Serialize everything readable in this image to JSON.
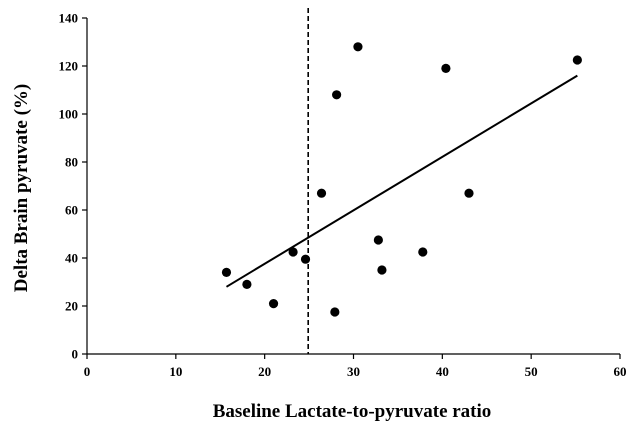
{
  "chart_data": {
    "type": "scatter",
    "title": "",
    "xlabel": "Baseline Lactate-to-pyruvate ratio",
    "ylabel": "Delta  Brain pyruvate (%)",
    "xlim": [
      0,
      60
    ],
    "ylim": [
      0,
      140
    ],
    "xticks": [
      0,
      10,
      20,
      30,
      40,
      50,
      60
    ],
    "yticks": [
      0,
      20,
      40,
      60,
      80,
      100,
      120,
      140
    ],
    "grid": false,
    "legend": "none",
    "series": [
      {
        "marker_color": "#000000",
        "points": [
          {
            "x": 15.7,
            "y": 34
          },
          {
            "x": 18.0,
            "y": 29
          },
          {
            "x": 21.0,
            "y": 21
          },
          {
            "x": 23.2,
            "y": 42.5
          },
          {
            "x": 24.6,
            "y": 39.5
          },
          {
            "x": 26.4,
            "y": 67
          },
          {
            "x": 27.9,
            "y": 17.5
          },
          {
            "x": 28.1,
            "y": 108
          },
          {
            "x": 30.5,
            "y": 128
          },
          {
            "x": 32.8,
            "y": 47.5
          },
          {
            "x": 33.2,
            "y": 35
          },
          {
            "x": 37.8,
            "y": 42.5
          },
          {
            "x": 40.4,
            "y": 119
          },
          {
            "x": 43.0,
            "y": 67
          },
          {
            "x": 55.2,
            "y": 122.5
          }
        ]
      }
    ],
    "trendline": {
      "x": [
        15.7,
        55.2
      ],
      "y": [
        28,
        116
      ]
    },
    "reference_line": {
      "axis": "x",
      "value": 24.9,
      "style": "dashed"
    }
  }
}
